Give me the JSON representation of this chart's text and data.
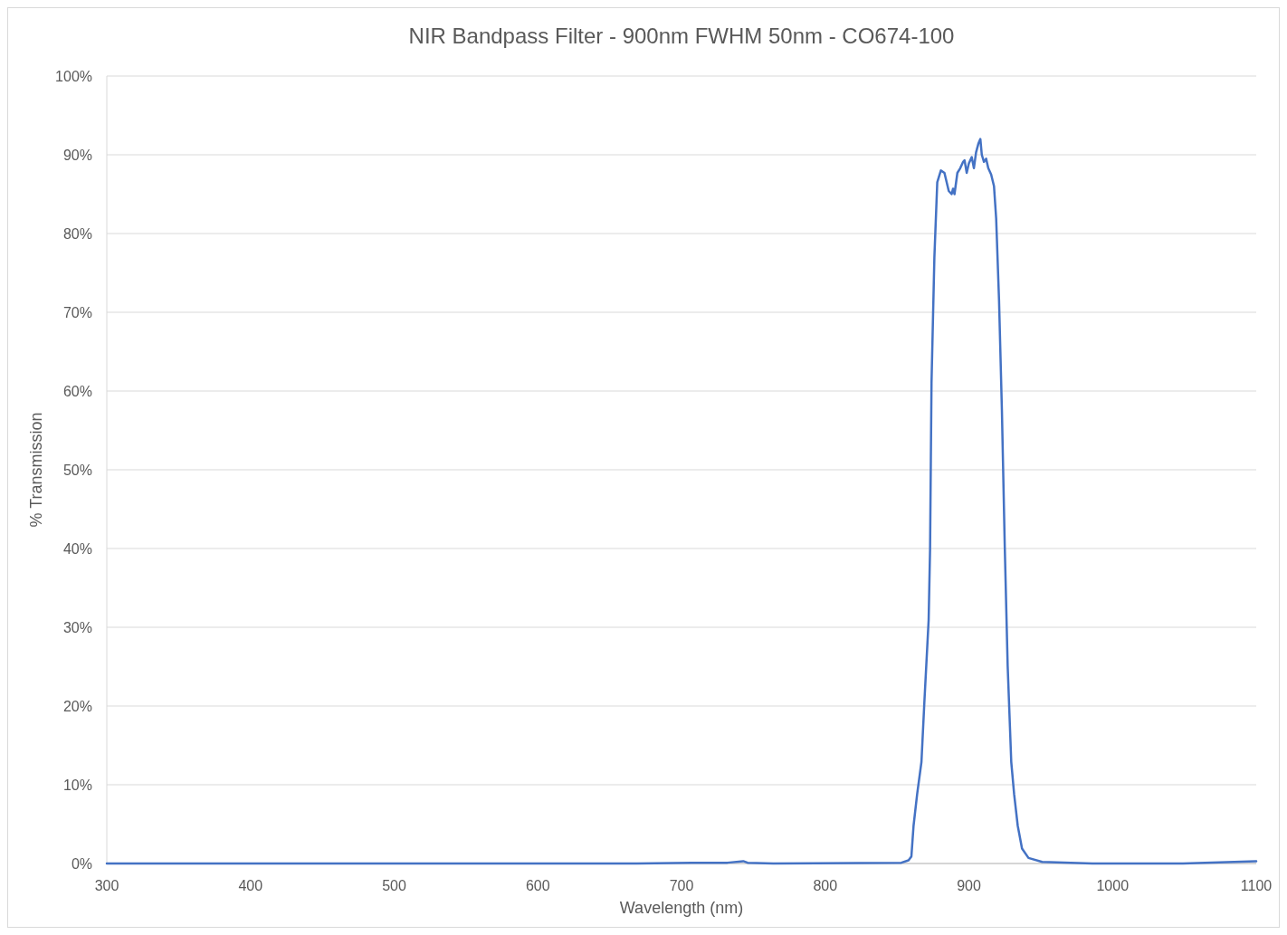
{
  "chart_data": {
    "type": "line",
    "title": "NIR Bandpass Filter - 900nm FWHM 50nm - CO674-100",
    "xlabel": "Wavelength (nm)",
    "ylabel": "% Transmission",
    "xlim": [
      300,
      1100
    ],
    "xticks": [
      300,
      400,
      500,
      600,
      700,
      800,
      900,
      1000,
      1100
    ],
    "ylim": [
      0,
      100
    ],
    "yticks": [
      {
        "value": 0,
        "label": "0%"
      },
      {
        "value": 10,
        "label": "10%"
      },
      {
        "value": 20,
        "label": "20%"
      },
      {
        "value": 30,
        "label": "30%"
      },
      {
        "value": 40,
        "label": "40%"
      },
      {
        "value": 50,
        "label": "50%"
      },
      {
        "value": 60,
        "label": "60%"
      },
      {
        "value": 70,
        "label": "70%"
      },
      {
        "value": 80,
        "label": "80%"
      },
      {
        "value": 90,
        "label": "90%"
      },
      {
        "value": 100,
        "label": "100%"
      }
    ],
    "grid": "y",
    "marker": "none",
    "line_style": "solid",
    "series": [
      {
        "color": "#4472c4",
        "x": [
          300,
          669,
          707,
          732,
          743,
          746,
          764,
          853,
          858,
          860,
          861.5,
          864,
          867,
          869,
          872,
          873,
          874,
          876,
          878,
          880.5,
          883,
          886,
          888,
          889,
          890,
          892,
          894,
          896,
          897,
          898.5,
          900,
          902,
          903.5,
          905,
          906.6,
          908,
          909,
          910.5,
          912,
          913.5,
          915.5,
          917.5,
          919,
          921,
          923,
          925,
          927,
          929.5,
          931.5,
          934,
          937,
          941.5,
          951,
          986,
          1049,
          1100
        ],
        "values": [
          0,
          0,
          0.1,
          0.1,
          0.3,
          0.1,
          0,
          0.1,
          0.4,
          0.9,
          4.8,
          8.8,
          12.9,
          20.4,
          30.9,
          40,
          61,
          77,
          86.5,
          88,
          87.7,
          85.4,
          85,
          85.7,
          85,
          87.7,
          88.3,
          89.1,
          89.3,
          87.7,
          88.9,
          89.7,
          88.3,
          90.3,
          91.4,
          92,
          90,
          89.1,
          89.5,
          88.3,
          87.5,
          86,
          81.9,
          71.5,
          57.5,
          40.1,
          25.1,
          12.9,
          8.8,
          4.8,
          1.9,
          0.7,
          0.2,
          0,
          0,
          0.3
        ]
      }
    ]
  }
}
